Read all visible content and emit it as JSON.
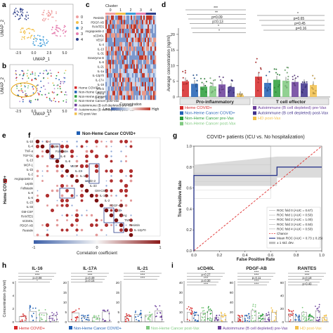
{
  "panels": {
    "a": {
      "letter": "a",
      "xlabel": "UMAP_1",
      "ylabel": "UMAP_2",
      "xticks": [
        "-2.5",
        "0.0",
        "2.5",
        "5.0"
      ],
      "yticks": [
        "5",
        "0",
        "-5"
      ],
      "legend_title": "",
      "legend": [
        {
          "label": "0",
          "color": "#f0a0a0"
        },
        {
          "label": "1",
          "color": "#f2c04a"
        },
        {
          "label": "2",
          "color": "#3a9ad9"
        },
        {
          "label": "3",
          "color": "#e67fb0"
        },
        {
          "label": "4",
          "color": "#2c3e8a"
        }
      ]
    },
    "b": {
      "letter": "b",
      "xlabel": "UMAP_1",
      "ylabel": "UMAP_2",
      "xticks": [
        "-2.5",
        "0.0",
        "2.5",
        "5.0"
      ],
      "yticks": [
        "5",
        "0",
        "-5"
      ],
      "legend": [
        {
          "label": "Heme COVID+",
          "color": "#d62728"
        },
        {
          "label": "Non-Heme Cancer COVID+",
          "color": "#1f5fb4"
        },
        {
          "label": "Non-Heme Cancer pre-Vax",
          "color": "#2a9d3a"
        },
        {
          "label": "Non-Heme Cancer post-Vax",
          "color": "#7fc97f"
        },
        {
          "label": "Autoimmune (B cell depleted) pre-Vax",
          "color": "#6a3d9a"
        },
        {
          "label": "Autoimmune (B cell depleted) post-Vax",
          "color": "#b58bd6"
        },
        {
          "label": "HD post-Vax",
          "color": "#f2c04a"
        }
      ]
    },
    "c": {
      "letter": "c",
      "cluster_title": "Cluster",
      "cluster_numbers": [
        "0",
        "1",
        "2",
        "3",
        "4"
      ],
      "cluster_colors": [
        "#f0a0a0",
        "#f2c04a",
        "#3a9ad9",
        "#e67fb0",
        "#2c3e8a"
      ],
      "rows": [
        "Resistin",
        "PDGF-AB",
        "RANTES",
        "Angiopoietin-2",
        "sCD40L",
        "VEGF",
        "IL-4",
        "IL-13",
        "IL-31",
        "Granzyme B",
        "IL-6",
        "IL-21",
        "IL-1a",
        "IL-12p70",
        "IL-17A",
        "IL-18",
        "IFN-b",
        "IFN-a",
        "G-CSF"
      ],
      "colorbar_title": "Concentration",
      "colorbar_low": "Low",
      "colorbar_high": "High"
    },
    "d": {
      "letter": "d",
      "ylabel": "Average concentration (ng/ml)",
      "yticks": [
        "0",
        "5",
        "10",
        "15",
        "20"
      ],
      "groups": [
        "Pro-inflammatory",
        "T cell effector"
      ],
      "left_sig": [
        "***",
        "**",
        "p=0.09",
        "p=0.13",
        "*",
        "*"
      ],
      "right_sig": [
        "*",
        "p=0.65",
        "p=0.45",
        "p=0.16"
      ],
      "legend": [
        {
          "label": "Heme COVID+",
          "color": "#d62728"
        },
        {
          "label": "Non-Heme Cancer COVID+",
          "color": "#1f5fb4"
        },
        {
          "label": "Non-Heme Cancer pre-Vax",
          "color": "#2a9d3a"
        },
        {
          "label": "Non-Heme Cancer post-Vax",
          "color": "#7fc97f"
        },
        {
          "label": "Autoimmune (B cell depleted) pre-Vax",
          "color": "#6a3d9a"
        },
        {
          "label": "Autoimmune (B cell depleted) post-Vax",
          "color": "#3d2f8a"
        },
        {
          "label": "HD post-Vax",
          "color": "#f2c04a"
        }
      ],
      "chart_data": {
        "type": "bar",
        "categories": [
          "Pro-inflammatory",
          "T cell effector"
        ],
        "ylim": [
          0,
          22
        ],
        "ylabel": "Average concentration (ng/ml)",
        "series": [
          {
            "name": "Heme COVID+",
            "values": [
              5.0,
              6.5
            ]
          },
          {
            "name": "Non-Heme Cancer COVID+",
            "values": [
              4.2,
              4.5
            ]
          },
          {
            "name": "Non-Heme Cancer pre-Vax",
            "values": [
              3.3,
              5.5
            ]
          },
          {
            "name": "Non-Heme Cancer post-Vax",
            "values": [
              3.4,
              5.2
            ]
          },
          {
            "name": "Autoimmune (B cell depleted) pre-Vax",
            "values": [
              4.0,
              4.8
            ]
          },
          {
            "name": "Autoimmune (B cell depleted) post-Vax",
            "values": [
              3.2,
              4.4
            ]
          },
          {
            "name": "HD post-Vax",
            "values": [
              0.6,
              3.8
            ]
          }
        ]
      }
    },
    "e": {
      "letter": "e",
      "side_label": "Heme COVID+",
      "row_labels": [
        "IL-10",
        "IL-4",
        "TNF-a",
        "TGF-b1",
        "IL-13",
        "MCP-1",
        "IL-1b",
        "IL-2",
        "Angiopoietin-2",
        "Leptin",
        "Follistatin",
        "IL-8",
        "IL-6",
        "IL-23",
        "IL-33",
        "GM-CSF",
        "RANTES",
        "sCD40L",
        "PDGF-AB",
        "Resistin"
      ]
    },
    "f": {
      "letter": "f",
      "title": "Non-Heme Cancer COVID+",
      "title_color": "#1f5fb4",
      "colorbar_label": "Correlation coefficient",
      "colorbar_ticks": [
        "-1",
        "0",
        "1"
      ],
      "diag_labels": [
        "IL-4",
        "Leptin",
        "Follistatin",
        "IL-8",
        "IL-6",
        "VEGF",
        "IL-23",
        "IL-13",
        "Leptin-2",
        "IL-33",
        "GM-CSF",
        "IL-17A",
        "IL-2",
        "PDGF-AB",
        "IL-1b",
        "IFN-g",
        "TNF-a",
        "Resistin",
        "IL-12p70"
      ]
    },
    "g": {
      "letter": "g",
      "title": "COVID+ patients (ICU vs. No hospitalization)",
      "xlabel": "False Positive Rate",
      "ylabel": "True Positive Rate",
      "xticks": [
        "0.0",
        "0.2",
        "0.4",
        "0.6",
        "0.8",
        "1.0"
      ],
      "yticks": [
        "0.0",
        "0.2",
        "0.4",
        "0.6",
        "0.8",
        "1.0"
      ],
      "legend": [
        "ROC fold 0 (AUC = 0.67)",
        "ROC fold 1 (AUC = 0.50)",
        "ROC fold 2 (AUC = 1.00)",
        "ROC fold 3 (AUC = 0.50)",
        "ROC fold 4 (AUC = 0.50)",
        "Chance",
        "Mean ROC (AUC = 0.73 ± 0.25)",
        "± 1 std. dev."
      ],
      "chart_data": {
        "type": "line",
        "xlabel": "False Positive Rate",
        "ylabel": "True Positive Rate",
        "xlim": [
          0,
          1
        ],
        "ylim": [
          0,
          1
        ],
        "series": [
          {
            "name": "Mean ROC (AUC = 0.73 ± 0.25)",
            "x": [
              0.0,
              0.0,
              0.65,
              0.65,
              1.0
            ],
            "y": [
              0.0,
              0.72,
              0.72,
              0.8,
              0.8
            ]
          },
          {
            "name": "Chance",
            "x": [
              0.0,
              1.0
            ],
            "y": [
              0.0,
              1.0
            ]
          }
        ]
      }
    },
    "h": {
      "letter": "h",
      "ylabel": "Concentration (ng/ml)",
      "subplots": [
        {
          "title": "IL-16",
          "sig": [
            "***",
            "****",
            "p=0.08",
            "*"
          ],
          "yticks": [
            "0",
            "2",
            "4",
            "6"
          ]
        },
        {
          "title": "IL-17A",
          "sig": [
            "****",
            "****",
            "p=0.49",
            "p=0.15"
          ],
          "yticks": [
            "0",
            "5",
            "10",
            "15",
            "20"
          ]
        },
        {
          "title": "IL-21",
          "sig": [
            "****",
            "****",
            "****"
          ],
          "yticks": [
            "0",
            "5",
            "10",
            "15",
            "20"
          ]
        }
      ]
    },
    "i": {
      "letter": "i",
      "subplots": [
        {
          "title": "sCD40L",
          "sig": [
            "*",
            "p=0.27",
            "****",
            "p=0.30",
            "****"
          ],
          "yticks": [
            "0",
            "10",
            "20",
            "30",
            "40"
          ]
        },
        {
          "title": "PDGF-AB",
          "sig": [
            "****",
            "****",
            "p=0.11",
            "****",
            "****"
          ],
          "yticks": [
            "0",
            "20",
            "40",
            "60",
            "80"
          ]
        },
        {
          "title": "RANTES",
          "sig": [
            "****",
            "****",
            "p=0.18",
            "****",
            "p=0.40"
          ],
          "yticks": [
            "0",
            "20",
            "40",
            "60"
          ]
        }
      ]
    }
  },
  "bottom_legend": [
    {
      "label": "Heme COVID+",
      "color": "#d62728"
    },
    {
      "label": "Non-Heme Cancer COVID+",
      "color": "#1f5fb4"
    },
    {
      "label": "Non-Heme Cancer post-Vax",
      "color": "#7fc97f"
    },
    {
      "label": "Autoimmune (B cell depleted) pre-Vax",
      "color": "#6a3d9a"
    },
    {
      "label": "HD post-Vax",
      "color": "#f2c04a"
    }
  ]
}
